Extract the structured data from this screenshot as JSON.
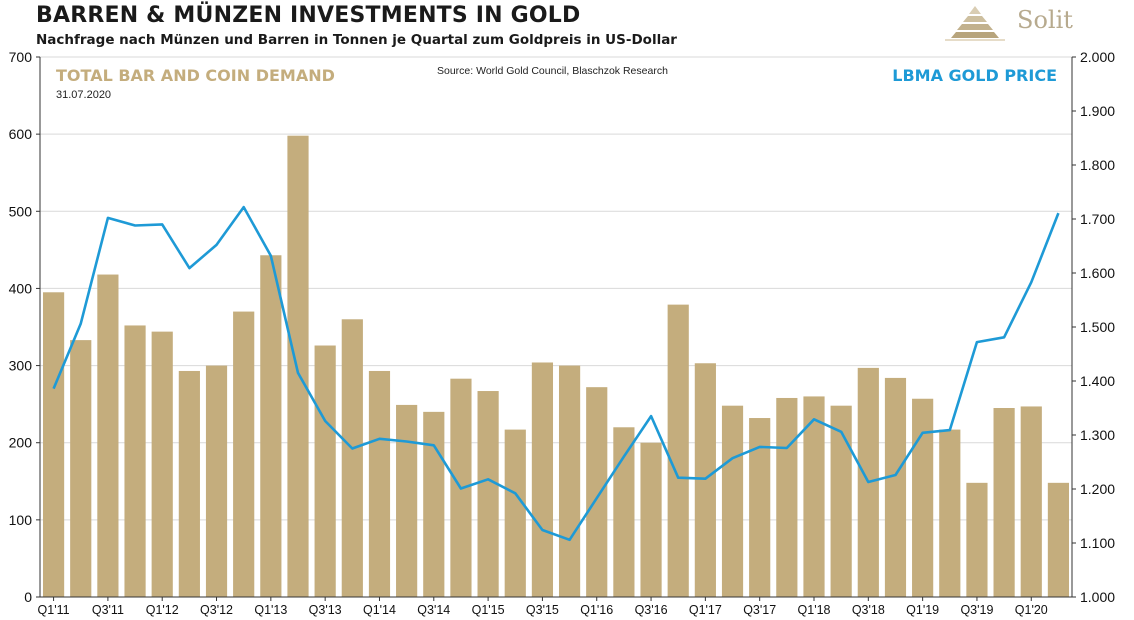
{
  "header": {
    "title": "BARREN & MÜNZEN INVESTMENTS IN GOLD",
    "subtitle": "Nachfrage nach Münzen und Barren in Tonnen je Quartal zum Goldpreis in US-Dollar",
    "logo_text": "Solit"
  },
  "legend": {
    "left_label": "TOTAL BAR AND COIN DEMAND",
    "right_label": "LBMA GOLD PRICE",
    "date": "31.07.2020",
    "source": "Source: World Gold Council, Blaschzok Research"
  },
  "colors": {
    "bar": "#c4ad7d",
    "line": "#1e9ad6",
    "grid": "#d9d9d9",
    "left_label": "#c4ad7d",
    "right_label": "#1e9ad6"
  },
  "chart_data": {
    "type": "bar+line",
    "title": "BARREN & MÜNZEN INVESTMENTS IN GOLD",
    "categories": [
      "Q1'11",
      "Q2'11",
      "Q3'11",
      "Q4'11",
      "Q1'12",
      "Q2'12",
      "Q3'12",
      "Q4'12",
      "Q1'13",
      "Q2'13",
      "Q3'13",
      "Q4'13",
      "Q1'14",
      "Q2'14",
      "Q3'14",
      "Q4'14",
      "Q1'15",
      "Q2'15",
      "Q3'15",
      "Q4'15",
      "Q1'16",
      "Q2'16",
      "Q3'16",
      "Q4'16",
      "Q1'17",
      "Q2'17",
      "Q3'17",
      "Q4'17",
      "Q1'18",
      "Q2'18",
      "Q3'18",
      "Q4'18",
      "Q1'19",
      "Q2'19",
      "Q3'19",
      "Q4'19",
      "Q1'20",
      "Q2'20"
    ],
    "tick_labels": [
      "Q1'11",
      "Q3'11",
      "Q1'12",
      "Q3'12",
      "Q1'13",
      "Q3'13",
      "Q1'14",
      "Q3'14",
      "Q1'15",
      "Q3'15",
      "Q1'16",
      "Q3'16",
      "Q1'17",
      "Q3'17",
      "Q1'18",
      "Q3'18",
      "Q1'19",
      "Q3'19",
      "Q1'20"
    ],
    "series": [
      {
        "name": "TOTAL BAR AND COIN DEMAND",
        "type": "bar",
        "axis": "left",
        "values": [
          395,
          333,
          418,
          352,
          344,
          293,
          300,
          370,
          443,
          598,
          326,
          360,
          293,
          249,
          240,
          283,
          267,
          217,
          304,
          300,
          272,
          220,
          200,
          379,
          303,
          248,
          232,
          258,
          260,
          248,
          297,
          284,
          257,
          217,
          148,
          245,
          247,
          148
        ]
      },
      {
        "name": "LBMA GOLD PRICE",
        "type": "line",
        "axis": "right",
        "values": [
          1386,
          1506,
          1702,
          1688,
          1690,
          1609,
          1652,
          1722,
          1632,
          1415,
          1326,
          1275,
          1293,
          1288,
          1281,
          1201,
          1218,
          1192,
          1124,
          1106,
          1183,
          1260,
          1335,
          1221,
          1219,
          1257,
          1278,
          1276,
          1329,
          1306,
          1213,
          1226,
          1304,
          1309,
          1472,
          1481,
          1583,
          1711
        ]
      }
    ],
    "ylim_left": [
      0,
      700
    ],
    "yticks_left": [
      "0",
      "100",
      "200",
      "300",
      "400",
      "500",
      "600",
      "700"
    ],
    "ylim_right": [
      1000,
      2000
    ],
    "yticks_right": [
      "1.000",
      "1.100",
      "1.200",
      "1.300",
      "1.400",
      "1.500",
      "1.600",
      "1.700",
      "1.800",
      "1.900",
      "2.000"
    ],
    "grid": true
  }
}
